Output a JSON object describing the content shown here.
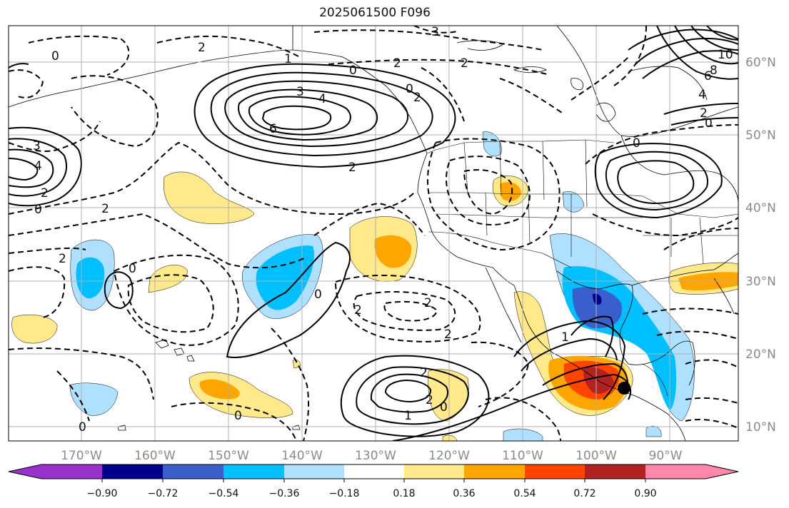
{
  "title": "2025061500 F096",
  "map": {
    "lon_ticks": [
      "170°W",
      "160°W",
      "150°W",
      "140°W",
      "130°W",
      "120°W",
      "110°W",
      "100°W",
      "90°W"
    ],
    "lat_ticks": [
      "60°N",
      "50°N",
      "40°N",
      "30°N",
      "20°N",
      "10°N"
    ],
    "contour_labels": [
      "3",
      "0",
      "2",
      "1",
      "0",
      "2",
      "3",
      "4",
      "6",
      "0",
      "2",
      "2",
      "3",
      "4",
      "2",
      "0",
      "2",
      "2",
      "0",
      "6",
      "8",
      "10",
      "4",
      "2",
      "0",
      "0",
      "2",
      "0",
      "2",
      "2",
      "2",
      "2",
      "1",
      "2",
      "0",
      "0",
      "1",
      "0"
    ],
    "marker": "black-dot",
    "colors": {
      "ocean": "#ffffff",
      "grid": "#b0b0b0",
      "pos_018": "#ffe98a",
      "pos_036": "#ffa500",
      "pos_054": "#ff4500",
      "pos_072": "#b22222",
      "pos_090": "#ff88aa",
      "neg_018": "#b0e0ff",
      "neg_036": "#00bfff",
      "neg_054": "#3a5fcd",
      "neg_072": "#00008b",
      "neg_090": "#9932cc"
    }
  },
  "colorbar": {
    "labels": [
      "−0.90",
      "−0.72",
      "−0.54",
      "−0.36",
      "−0.18",
      "0.18",
      "0.36",
      "0.54",
      "0.72",
      "0.90"
    ],
    "colors": [
      "#9932cc",
      "#00008b",
      "#3a5fcd",
      "#00bfff",
      "#b0e0ff",
      "#ffffff",
      "#ffe98a",
      "#ffa500",
      "#ff4500",
      "#b22222",
      "#ff88aa"
    ]
  }
}
